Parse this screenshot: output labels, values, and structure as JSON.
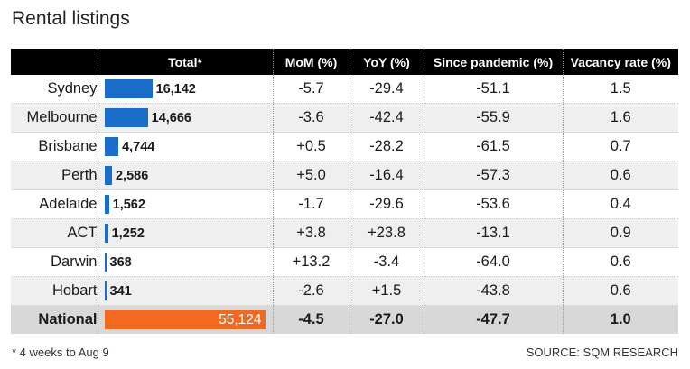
{
  "title": "Rental listings",
  "footnote": "* 4 weeks to Aug 9",
  "source": "SOURCE: SQM RESEARCH",
  "colors": {
    "bar": "#1a6ec9",
    "national_bar": "#f26a21",
    "header_bg": "#000000"
  },
  "chart_data": {
    "type": "table",
    "columns": [
      "",
      "Total*",
      "MoM (%)",
      "YoY (%)",
      "Since pandemic (%)",
      "Vacancy rate (%)"
    ],
    "rows": [
      {
        "city": "Sydney",
        "total": 16142,
        "total_label": "16,142",
        "mom": "-5.7",
        "yoy": "-29.4",
        "since": "-51.1",
        "vacancy": "1.5"
      },
      {
        "city": "Melbourne",
        "total": 14666,
        "total_label": "14,666",
        "mom": "-3.6",
        "yoy": "-42.4",
        "since": "-55.9",
        "vacancy": "1.6"
      },
      {
        "city": "Brisbane",
        "total": 4744,
        "total_label": "4,744",
        "mom": "+0.5",
        "yoy": "-28.2",
        "since": "-61.5",
        "vacancy": "0.7"
      },
      {
        "city": "Perth",
        "total": 2586,
        "total_label": "2,586",
        "mom": "+5.0",
        "yoy": "-16.4",
        "since": "-57.3",
        "vacancy": "0.6"
      },
      {
        "city": "Adelaide",
        "total": 1562,
        "total_label": "1,562",
        "mom": "-1.7",
        "yoy": "-29.6",
        "since": "-53.6",
        "vacancy": "0.4"
      },
      {
        "city": "ACT",
        "total": 1252,
        "total_label": "1,252",
        "mom": "+3.8",
        "yoy": "+23.8",
        "since": "-13.1",
        "vacancy": "0.9"
      },
      {
        "city": "Darwin",
        "total": 368,
        "total_label": "368",
        "mom": "+13.2",
        "yoy": "-3.4",
        "since": "-64.0",
        "vacancy": "0.6"
      },
      {
        "city": "Hobart",
        "total": 341,
        "total_label": "341",
        "mom": "-2.6",
        "yoy": "+1.5",
        "since": "-43.8",
        "vacancy": "0.6"
      }
    ],
    "national": {
      "city": "National",
      "total": 55124,
      "total_label": "55,124",
      "mom": "-4.5",
      "yoy": "-27.0",
      "since": "-47.7",
      "vacancy": "1.0"
    }
  }
}
